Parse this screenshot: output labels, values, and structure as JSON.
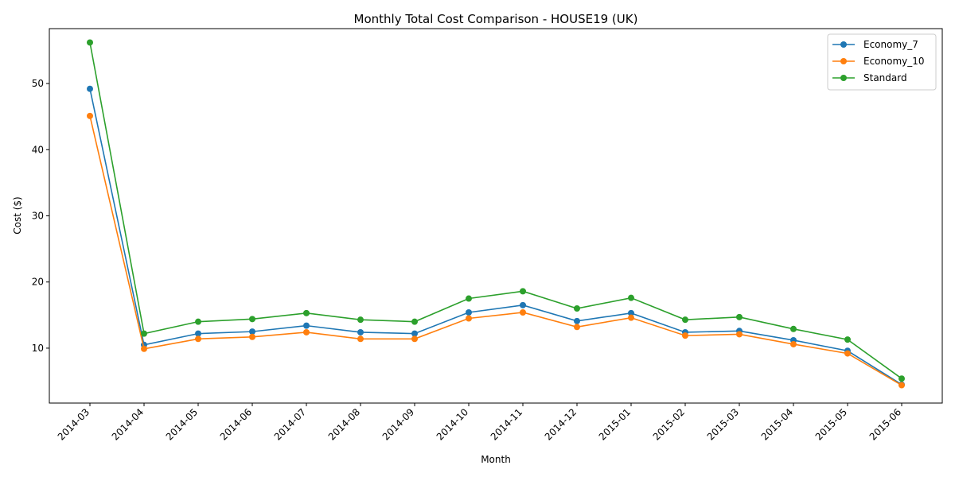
{
  "chart_data": {
    "type": "line",
    "title": "Monthly Total Cost Comparison - HOUSE19 (UK)",
    "xlabel": "Month",
    "ylabel": "Cost ($)",
    "categories": [
      "2014-03",
      "2014-04",
      "2014-05",
      "2014-06",
      "2014-07",
      "2014-08",
      "2014-09",
      "2014-10",
      "2014-11",
      "2014-12",
      "2015-01",
      "2015-02",
      "2015-03",
      "2015-04",
      "2015-05",
      "2015-06"
    ],
    "ylim": [
      1.7,
      58.3
    ],
    "yticks": [
      10,
      20,
      30,
      40,
      50
    ],
    "grid": false,
    "legend_position": "top-right",
    "series": [
      {
        "name": "Economy_7",
        "color": "#1f77b4",
        "values": [
          49.2,
          10.5,
          12.2,
          12.5,
          13.4,
          12.4,
          12.2,
          15.4,
          16.5,
          14.1,
          15.3,
          12.4,
          12.6,
          11.2,
          9.6,
          4.5
        ]
      },
      {
        "name": "Economy_10",
        "color": "#ff7f0e",
        "values": [
          45.1,
          9.9,
          11.4,
          11.7,
          12.4,
          11.4,
          11.4,
          14.5,
          15.4,
          13.2,
          14.6,
          11.9,
          12.1,
          10.6,
          9.2,
          4.4
        ]
      },
      {
        "name": "Standard",
        "color": "#2ca02c",
        "values": [
          56.2,
          12.2,
          14.0,
          14.4,
          15.3,
          14.3,
          14.0,
          17.5,
          18.6,
          16.0,
          17.6,
          14.3,
          14.7,
          12.9,
          11.3,
          5.4
        ]
      }
    ]
  }
}
